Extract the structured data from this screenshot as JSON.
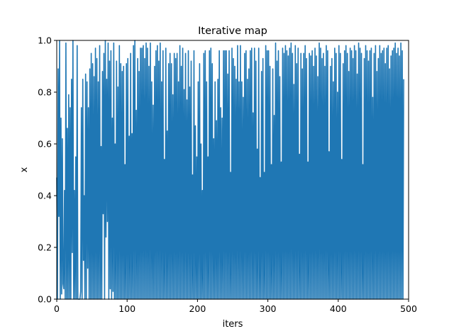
{
  "chart_data": {
    "type": "line",
    "title": "Iterative map",
    "xlabel": "iters",
    "ylabel": "x",
    "xlim": [
      0,
      500
    ],
    "ylim": [
      0,
      1
    ],
    "xticks": [
      0,
      100,
      200,
      300,
      400,
      500
    ],
    "yticks": [
      0.0,
      0.2,
      0.4,
      0.6,
      0.8,
      1.0
    ],
    "xtick_labels": [
      "0",
      "100",
      "200",
      "300",
      "400",
      "500"
    ],
    "ytick_labels": [
      "0.0",
      "0.2",
      "0.4",
      "0.6",
      "0.8",
      "1.0"
    ],
    "grid": false,
    "series": [
      {
        "color": "#1f77b4",
        "x_start": 0,
        "x_step": 1,
        "y": [
          0.47,
          0.0,
          0.89,
          0.32,
          1.0,
          0.0,
          0.7,
          0.02,
          0.62,
          0.06,
          0.04,
          0.42,
          0.0,
          0.99,
          0.0,
          0.66,
          0.0,
          0.79,
          0.0,
          0.74,
          0.0,
          0.85,
          0.18,
          1.0,
          0.0,
          0.42,
          0.0,
          0.55,
          0.0,
          0.98,
          0.0,
          0.0,
          0.0,
          0.0,
          0.03,
          0.74,
          0.0,
          0.85,
          0.15,
          0.4,
          0.0,
          0.87,
          0.0,
          0.84,
          0.12,
          0.74,
          0.0,
          0.89,
          0.0,
          0.95,
          0.0,
          0.91,
          0.0,
          0.86,
          0.0,
          0.97,
          0.0,
          0.93,
          0.0,
          0.84,
          0.0,
          0.98,
          0.0,
          0.59,
          0.0,
          0.88,
          0.33,
          0.95,
          0.0,
          1.0,
          0.24,
          0.85,
          0.3,
          0.99,
          0.0,
          0.92,
          0.04,
          0.96,
          0.0,
          0.7,
          0.03,
          0.99,
          0.0,
          0.6,
          0.0,
          0.92,
          0.0,
          0.82,
          0.0,
          0.98,
          0.0,
          0.91,
          0.0,
          0.88,
          0.0,
          0.9,
          0.0,
          0.52,
          0.0,
          0.91,
          0.0,
          0.93,
          0.0,
          0.63,
          0.0,
          0.95,
          0.0,
          0.64,
          0.0,
          0.98,
          0.0,
          1.0,
          0.0,
          0.73,
          0.0,
          0.93,
          0.0,
          0.88,
          0.0,
          0.97,
          0.0,
          0.97,
          0.0,
          0.98,
          0.0,
          0.93,
          0.0,
          0.99,
          0.0,
          0.97,
          0.0,
          0.9,
          0.0,
          0.99,
          0.0,
          0.84,
          0.0,
          0.75,
          0.0,
          0.9,
          0.0,
          0.96,
          0.0,
          0.98,
          0.0,
          0.92,
          0.0,
          0.99,
          0.0,
          0.84,
          0.0,
          0.96,
          0.0,
          0.54,
          0.0,
          0.97,
          0.0,
          0.65,
          0.0,
          0.91,
          0.0,
          0.95,
          0.0,
          0.91,
          0.0,
          0.79,
          0.0,
          0.95,
          0.0,
          0.93,
          0.0,
          0.95,
          0.0,
          0.84,
          0.0,
          0.98,
          0.0,
          0.9,
          0.0,
          0.97,
          0.0,
          0.81,
          0.0,
          0.95,
          0.0,
          0.77,
          0.0,
          0.96,
          0.0,
          0.82,
          0.0,
          0.92,
          0.0,
          0.48,
          0.0,
          0.96,
          0.0,
          0.67,
          0.0,
          0.55,
          0.0,
          0.84,
          0.0,
          0.91,
          0.0,
          0.6,
          0.0,
          0.42,
          0.0,
          0.95,
          0.0,
          0.96,
          0.0,
          0.84,
          0.0,
          0.55,
          0.0,
          0.96,
          0.0,
          0.97,
          0.0,
          0.91,
          0.0,
          0.62,
          0.0,
          0.84,
          0.0,
          0.69,
          0.0,
          0.85,
          0.0,
          0.96,
          0.0,
          0.74,
          0.0,
          0.7,
          0.0,
          0.96,
          0.0,
          0.96,
          0.0,
          0.96,
          0.0,
          0.87,
          0.0,
          0.96,
          0.0,
          0.49,
          0.0,
          0.97,
          0.0,
          0.93,
          0.0,
          0.9,
          0.0,
          0.85,
          0.0,
          0.98,
          0.0,
          0.84,
          0.0,
          0.98,
          0.0,
          0.84,
          0.0,
          0.78,
          0.0,
          0.95,
          0.0,
          0.96,
          0.0,
          0.85,
          0.0,
          0.89,
          0.0,
          0.96,
          0.0,
          0.97,
          0.0,
          0.72,
          0.0,
          0.97,
          0.0,
          0.92,
          0.0,
          0.58,
          0.0,
          0.97,
          0.0,
          0.47,
          0.0,
          0.88,
          0.0,
          0.93,
          0.0,
          0.49,
          0.0,
          0.98,
          0.0,
          0.96,
          0.0,
          0.96,
          0.0,
          0.9,
          0.0,
          0.52,
          0.0,
          0.89,
          0.0,
          0.71,
          0.0,
          0.99,
          0.0,
          0.92,
          0.0,
          0.96,
          0.0,
          0.86,
          0.0,
          0.53,
          0.0,
          0.97,
          0.0,
          0.95,
          0.0,
          0.98,
          0.0,
          0.96,
          0.0,
          0.94,
          0.0,
          0.97,
          0.0,
          0.99,
          0.0,
          0.95,
          0.0,
          0.83,
          0.0,
          0.98,
          0.0,
          0.91,
          0.0,
          0.97,
          0.0,
          0.56,
          0.0,
          0.95,
          0.0,
          0.89,
          0.0,
          0.95,
          0.0,
          0.98,
          0.0,
          0.93,
          0.0,
          0.53,
          0.0,
          0.95,
          0.0,
          0.94,
          0.0,
          0.96,
          0.0,
          0.9,
          0.0,
          0.97,
          0.0,
          0.94,
          0.0,
          0.86,
          0.0,
          0.99,
          0.0,
          0.97,
          0.0,
          0.93,
          0.0,
          0.95,
          0.0,
          0.9,
          0.0,
          0.98,
          0.0,
          0.96,
          0.0,
          0.57,
          0.0,
          0.9,
          0.0,
          0.93,
          0.0,
          0.84,
          0.0,
          0.97,
          0.0,
          0.95,
          0.0,
          0.8,
          0.0,
          0.98,
          0.0,
          0.95,
          0.0,
          0.54,
          0.0,
          0.91,
          0.0,
          0.96,
          0.0,
          0.98,
          0.0,
          0.95,
          0.0,
          0.88,
          0.0,
          0.97,
          0.0,
          0.96,
          0.0,
          0.93,
          0.0,
          0.98,
          0.0,
          0.96,
          0.0,
          0.87,
          0.0,
          0.99,
          0.0,
          0.97,
          0.0,
          0.95,
          0.0,
          0.52,
          0.0,
          0.93,
          0.0,
          0.98,
          0.0,
          0.96,
          0.0,
          0.92,
          0.0,
          0.96,
          0.0,
          0.97,
          0.0,
          0.78,
          0.0,
          0.95,
          0.0,
          0.98,
          0.0,
          0.88,
          0.0,
          0.93,
          0.0,
          0.98,
          0.0,
          0.95,
          0.0,
          0.96,
          0.0,
          0.97,
          0.0,
          0.91,
          0.0,
          0.97,
          0.0,
          0.98,
          0.0,
          0.89,
          0.0,
          0.94,
          0.0,
          0.96,
          0.0,
          0.97,
          0.0,
          0.99,
          0.0,
          0.95,
          0.0,
          0.97,
          0.0,
          0.94,
          0.0,
          0.99,
          0.0,
          0.96,
          0.0,
          0.85
        ]
      }
    ]
  }
}
